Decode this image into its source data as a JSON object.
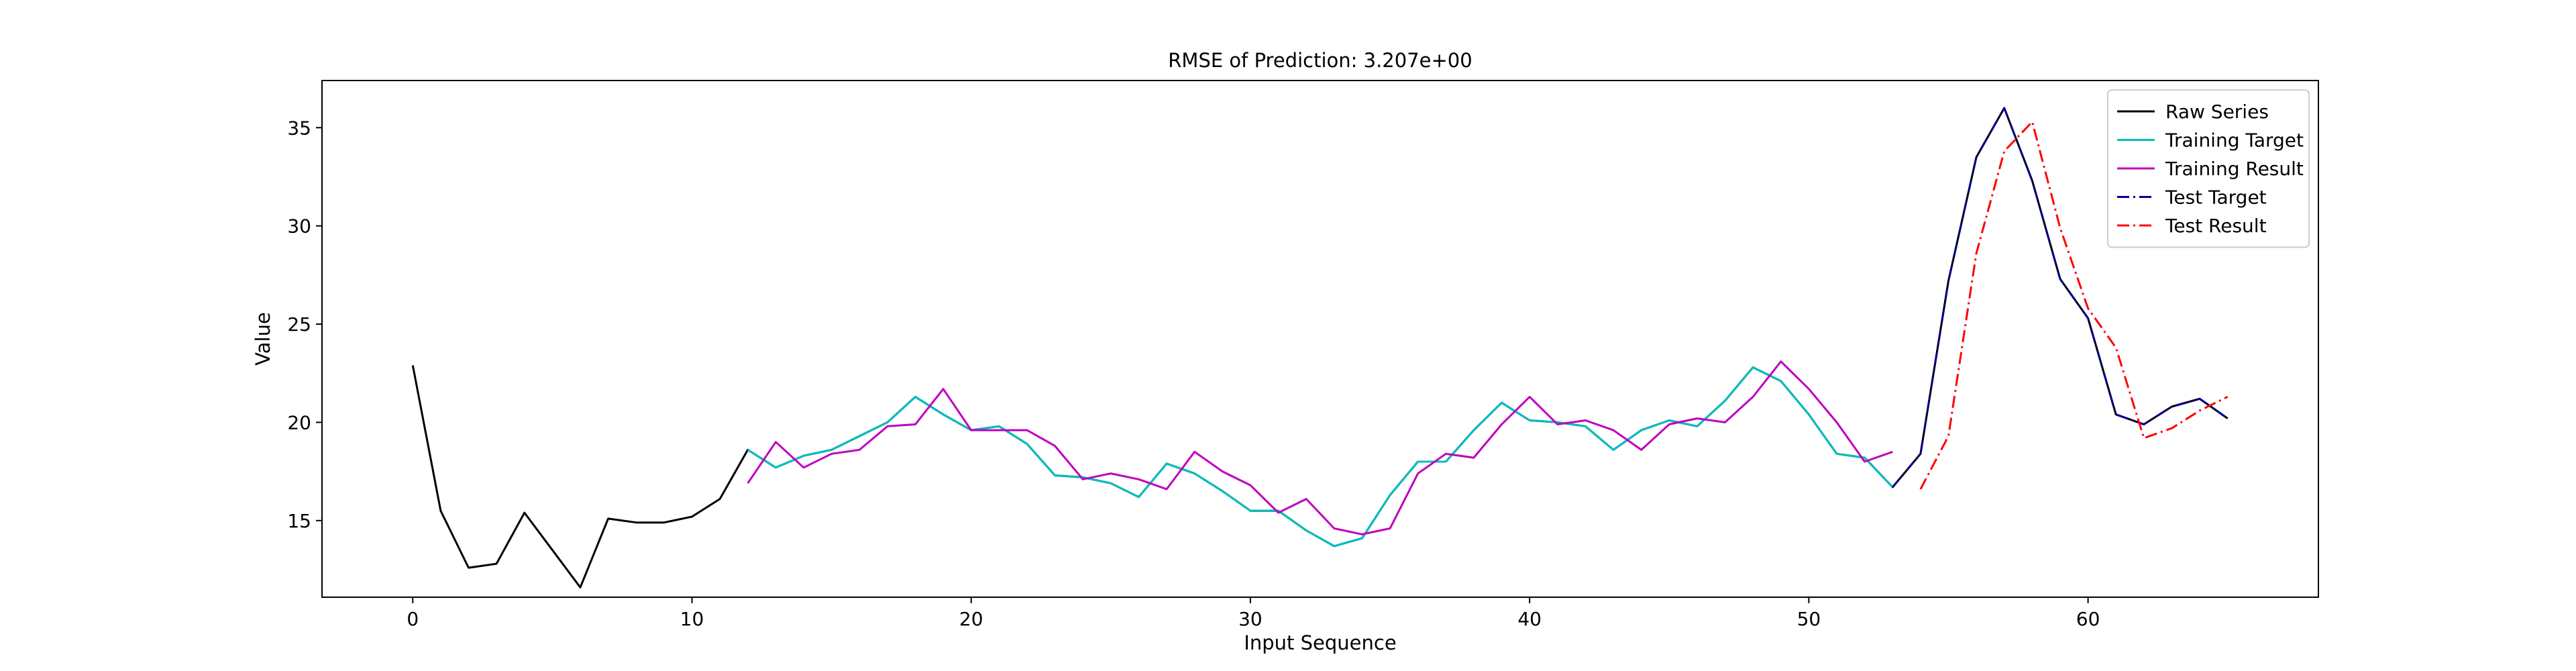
{
  "chart_data": {
    "type": "line",
    "title": "RMSE of Prediction: 3.207e+00",
    "xlabel": "Input Sequence",
    "ylabel": "Value",
    "xlim": [
      -3.25,
      68.25
    ],
    "ylim": [
      11.1,
      37.4
    ],
    "xticks": [
      0,
      10,
      20,
      30,
      40,
      50,
      60
    ],
    "yticks": [
      15,
      20,
      25,
      30,
      35
    ],
    "grid": false,
    "legend_position": "top-right",
    "series": [
      {
        "name": "Raw Series",
        "color": "#000000",
        "dash": "solid",
        "x": [
          0,
          1,
          2,
          3,
          4,
          5,
          6,
          7,
          8,
          9,
          10,
          11,
          12,
          13,
          14,
          15,
          16,
          17,
          18,
          19,
          20,
          21,
          22,
          23,
          24,
          25,
          26,
          27,
          28,
          29,
          30,
          31,
          32,
          33,
          34,
          35,
          36,
          37,
          38,
          39,
          40,
          41,
          42,
          43,
          44,
          45,
          46,
          47,
          48,
          49,
          50,
          51,
          52,
          53,
          54,
          55,
          56,
          57,
          58,
          59,
          60,
          61,
          62,
          63,
          64,
          65
        ],
        "y": [
          22.9,
          15.5,
          12.6,
          12.8,
          15.4,
          13.5,
          11.6,
          15.1,
          14.9,
          14.9,
          15.2,
          16.1,
          18.6,
          17.7,
          18.3,
          18.6,
          19.3,
          20.0,
          21.3,
          20.4,
          19.6,
          19.8,
          18.9,
          17.3,
          17.2,
          16.9,
          16.2,
          17.9,
          17.4,
          16.5,
          15.5,
          15.5,
          14.5,
          13.7,
          14.1,
          16.3,
          18.0,
          18.0,
          19.6,
          21.0,
          20.1,
          20.0,
          19.8,
          18.6,
          19.6,
          20.1,
          19.8,
          21.1,
          22.8,
          22.1,
          20.4,
          18.4,
          18.2,
          16.7,
          18.4,
          27.2,
          33.5,
          36.0,
          32.3,
          27.3,
          25.3,
          20.4,
          19.9,
          20.8,
          21.2,
          20.2
        ]
      },
      {
        "name": "Training Target",
        "color": "#00bfbf",
        "dash": "solid",
        "x": [
          12,
          13,
          14,
          15,
          16,
          17,
          18,
          19,
          20,
          21,
          22,
          23,
          24,
          25,
          26,
          27,
          28,
          29,
          30,
          31,
          32,
          33,
          34,
          35,
          36,
          37,
          38,
          39,
          40,
          41,
          42,
          43,
          44,
          45,
          46,
          47,
          48,
          49,
          50,
          51,
          52,
          53
        ],
        "y": [
          18.6,
          17.7,
          18.3,
          18.6,
          19.3,
          20.0,
          21.3,
          20.4,
          19.6,
          19.8,
          18.9,
          17.3,
          17.2,
          16.9,
          16.2,
          17.9,
          17.4,
          16.5,
          15.5,
          15.5,
          14.5,
          13.7,
          14.1,
          16.3,
          18.0,
          18.0,
          19.6,
          21.0,
          20.1,
          20.0,
          19.8,
          18.6,
          19.6,
          20.1,
          19.8,
          21.1,
          22.8,
          22.1,
          20.4,
          18.4,
          18.2,
          16.7
        ]
      },
      {
        "name": "Training Result",
        "color": "#bf00bf",
        "dash": "solid",
        "x": [
          12,
          13,
          14,
          15,
          16,
          17,
          18,
          19,
          20,
          21,
          22,
          23,
          24,
          25,
          26,
          27,
          28,
          29,
          30,
          31,
          32,
          33,
          34,
          35,
          36,
          37,
          38,
          39,
          40,
          41,
          42,
          43,
          44,
          45,
          46,
          47,
          48,
          49,
          50,
          51,
          52,
          53
        ],
        "y": [
          16.9,
          19.0,
          17.7,
          18.4,
          18.6,
          19.8,
          19.9,
          21.7,
          19.6,
          19.6,
          19.6,
          18.8,
          17.1,
          17.4,
          17.1,
          16.6,
          18.5,
          17.5,
          16.8,
          15.4,
          16.1,
          14.6,
          14.3,
          14.6,
          17.4,
          18.4,
          18.2,
          19.9,
          21.3,
          19.9,
          20.1,
          19.6,
          18.6,
          19.9,
          20.2,
          20.0,
          21.3,
          23.1,
          21.7,
          20.0,
          18.0,
          18.5
        ]
      },
      {
        "name": "Test Target",
        "color": "#00008b",
        "dash": "dashdot",
        "x": [
          53,
          54,
          55,
          56,
          57,
          58,
          59,
          60,
          61,
          62,
          63,
          64,
          65
        ],
        "y": [
          16.7,
          18.4,
          27.2,
          33.5,
          36.0,
          32.3,
          27.3,
          25.3,
          20.4,
          19.9,
          20.8,
          21.2,
          20.2
        ]
      },
      {
        "name": "Test Result",
        "color": "#ff0000",
        "dash": "dashdot",
        "x": [
          54,
          55,
          56,
          57,
          58,
          59,
          60,
          61,
          62,
          63,
          64,
          65
        ],
        "y": [
          16.6,
          19.3,
          28.6,
          33.8,
          35.3,
          29.9,
          25.8,
          23.8,
          19.2,
          19.7,
          20.6,
          21.3
        ]
      }
    ]
  }
}
